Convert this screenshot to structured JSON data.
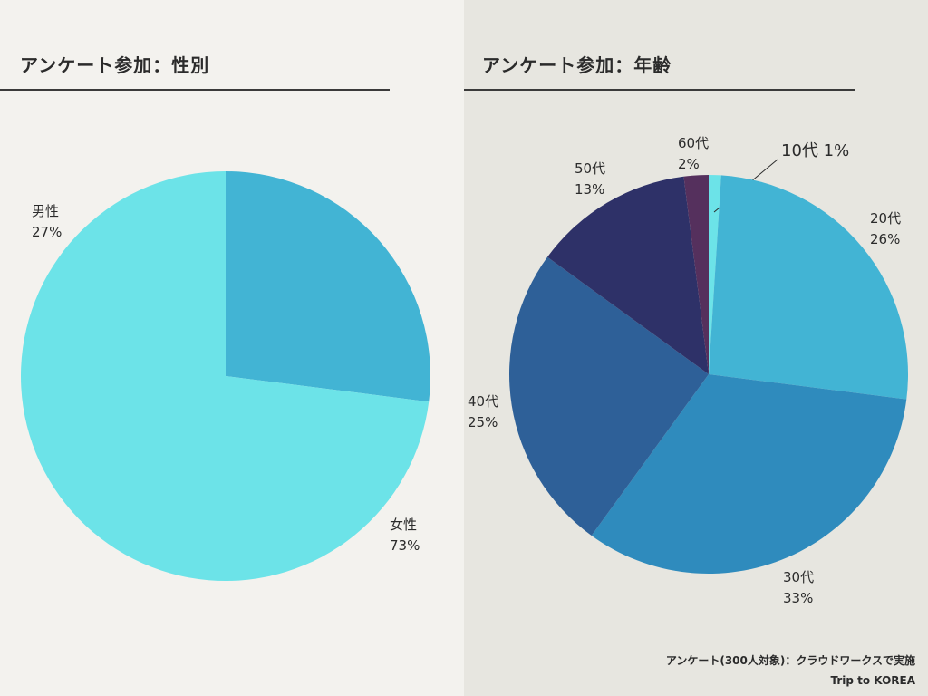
{
  "chart_data": [
    {
      "type": "pie",
      "title": "アンケート参加：性別",
      "slices": [
        {
          "label": "男性",
          "value": 27,
          "value_label": "27%",
          "color": "#42b4d4"
        },
        {
          "label": "女性",
          "value": 73,
          "value_label": "73%",
          "color": "#6ce3e8"
        }
      ]
    },
    {
      "type": "pie",
      "title": "アンケート参加：年齢",
      "slices": [
        {
          "label": "10代",
          "value": 1,
          "value_label": "1%",
          "color": "#6ce3e8"
        },
        {
          "label": "20代",
          "value": 26,
          "value_label": "26%",
          "color": "#42b4d4"
        },
        {
          "label": "30代",
          "value": 33,
          "value_label": "33%",
          "color": "#2f8bbd"
        },
        {
          "label": "40代",
          "value": 25,
          "value_label": "25%",
          "color": "#2e6098"
        },
        {
          "label": "50代",
          "value": 13,
          "value_label": "13%",
          "color": "#2e3168"
        },
        {
          "label": "60代",
          "value": 2,
          "value_label": "2%",
          "color": "#55305d"
        }
      ]
    }
  ],
  "footer": {
    "source": "アンケート(300人対象)：クラウドワークスで実施",
    "brand": "Trip to KOREA"
  }
}
